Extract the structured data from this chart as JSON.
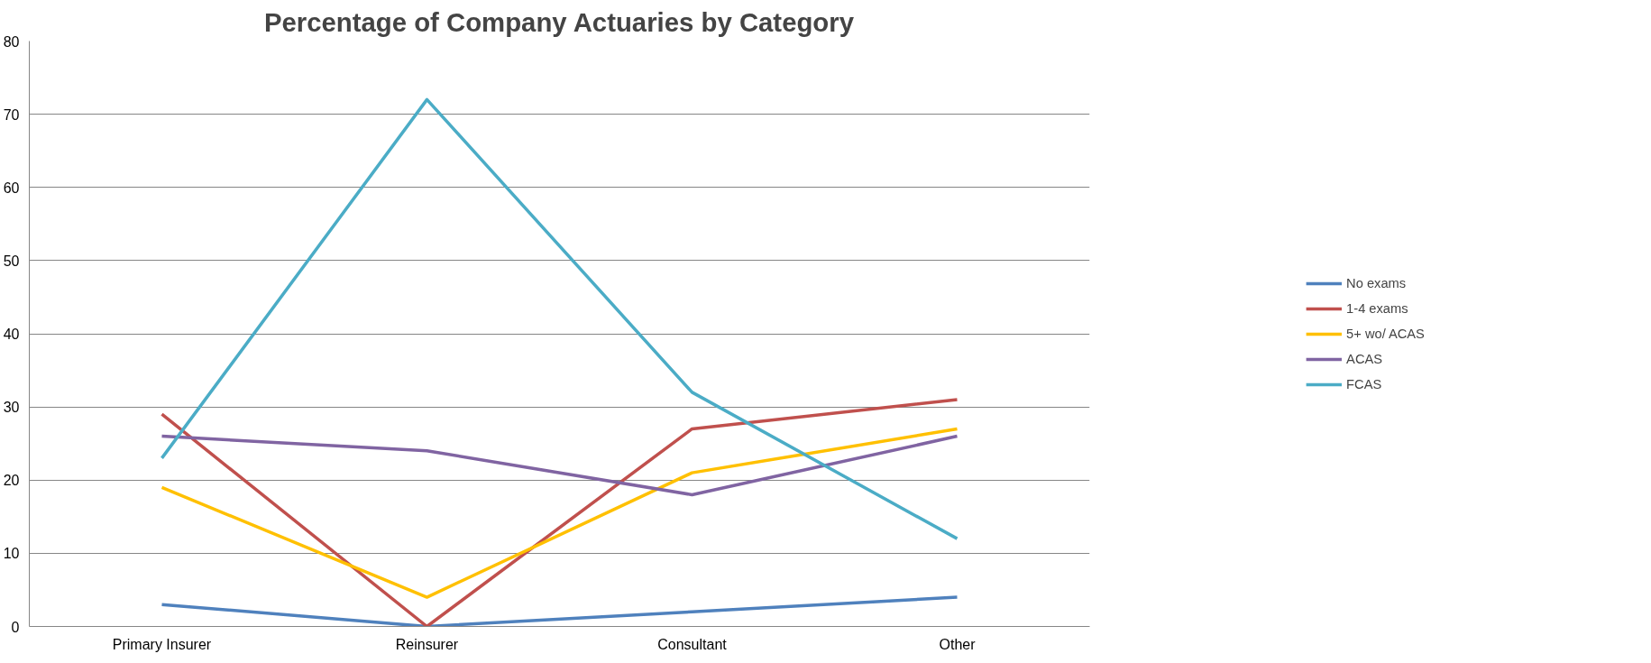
{
  "chart_data": {
    "type": "line",
    "title": "Percentage of Company Actuaries by Category",
    "categories": [
      "Primary Insurer",
      "Reinsurer",
      "Consultant",
      "Other"
    ],
    "series": [
      {
        "name": "No exams",
        "color": "#4f81bd",
        "values": [
          3,
          0,
          2,
          4
        ]
      },
      {
        "name": "1-4 exams",
        "color": "#c0504d",
        "values": [
          29,
          0,
          27,
          31
        ]
      },
      {
        "name": "5+ wo/ ACAS",
        "color": "#ffc000",
        "values": [
          19,
          4,
          21,
          27
        ]
      },
      {
        "name": "ACAS",
        "color": "#8064a2",
        "values": [
          26,
          24,
          18,
          26
        ]
      },
      {
        "name": "FCAS",
        "color": "#4bacc6",
        "values": [
          23,
          72,
          32,
          12
        ]
      }
    ],
    "ylim": [
      0,
      80
    ],
    "yticks": [
      0,
      10,
      20,
      30,
      40,
      50,
      60,
      70,
      80
    ],
    "grid": "y",
    "legend": "right",
    "marker": "none",
    "line_style": "solid"
  }
}
